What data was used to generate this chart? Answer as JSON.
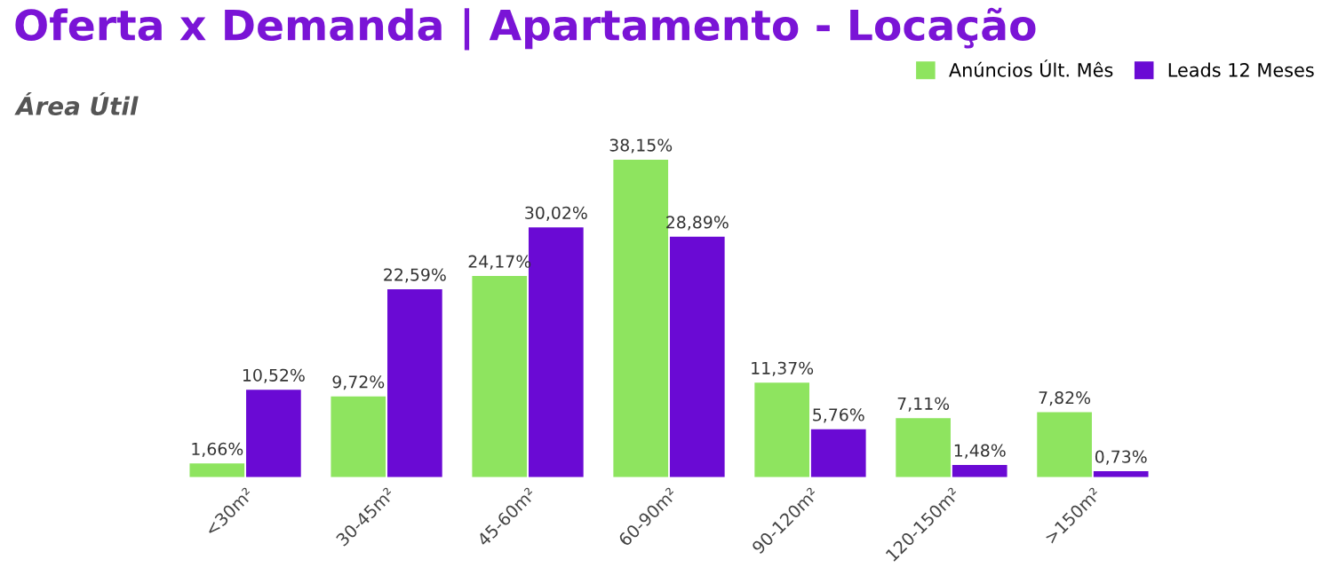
{
  "chart_data": {
    "type": "bar",
    "title": "Oferta x Demanda | Apartamento - Locação",
    "subtitle": "Área Útil",
    "categories": [
      "<30m²",
      "30-45m²",
      "45-60m²",
      "60-90m²",
      "90-120m²",
      "120-150m²",
      ">150m²"
    ],
    "series": [
      {
        "name": "Anúncios Últ. Mês",
        "color": "#8ee45f",
        "values": [
          1.66,
          9.72,
          24.17,
          38.15,
          11.37,
          7.11,
          7.82
        ],
        "value_labels": [
          "1,66%",
          "9,72%",
          "24,17%",
          "38,15%",
          "11,37%",
          "7,11%",
          "7,82%"
        ]
      },
      {
        "name": "Leads 12 Meses",
        "color": "#6a0ad4",
        "values": [
          10.52,
          22.59,
          30.02,
          28.89,
          5.76,
          1.48,
          0.73
        ],
        "value_labels": [
          "10,52%",
          "22,59%",
          "30,02%",
          "28,89%",
          "5,76%",
          "1,48%",
          "0,73%"
        ]
      }
    ],
    "tick_labels": "x",
    "grid": false,
    "legend": "top right"
  }
}
